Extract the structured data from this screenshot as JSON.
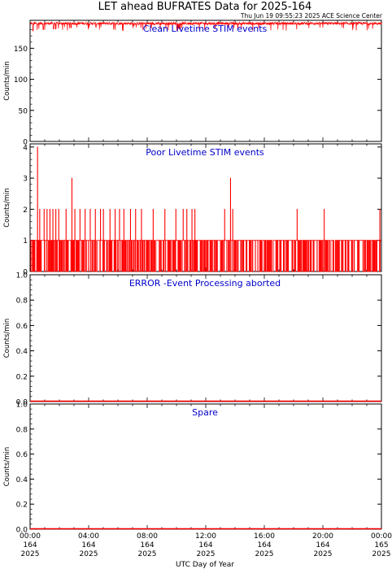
{
  "figure": {
    "title": "LET ahead BUFRATES Data for 2025-164",
    "timestamp": "Thu Jun 19 09:55:23 2025 ACE Science Center",
    "xlabel": "UTC Day of Year",
    "colors": {
      "data": "#ff0000",
      "panel_title": "#0000cc",
      "axes": "#000000"
    }
  },
  "chart_data": [
    {
      "type": "line",
      "title": "Clean Livetime STIM events",
      "ylabel": "Counts/min",
      "ylim": [
        0,
        195
      ],
      "yticks": [
        0,
        50,
        100,
        150
      ],
      "ytick_labels": [
        "0",
        "50",
        "100",
        "150"
      ],
      "xlim_hours": [
        0,
        24
      ],
      "series": [
        {
          "band_low": 178,
          "band_high": 195,
          "typical": 190,
          "note_dips": [
            [
              0.2,
              178
            ],
            [
              0.9,
              180
            ],
            [
              1.6,
              181
            ],
            [
              2.8,
              183
            ],
            [
              4.5,
              184
            ],
            [
              7.1,
              186
            ]
          ]
        }
      ]
    },
    {
      "type": "line",
      "title": "Poor Livetime STIM events",
      "ylabel": "Counts/min",
      "ylim": [
        0,
        4.1
      ],
      "yticks": [
        0,
        1,
        2,
        3,
        4
      ],
      "ytick_labels": [
        "0",
        "1",
        "2",
        "3",
        "4"
      ],
      "xlim_hours": [
        0,
        24
      ],
      "series": [
        {
          "base_one_coverage": 0.7,
          "spikes": [
            [
              0.5,
              4
            ],
            [
              0.65,
              2
            ],
            [
              0.95,
              2
            ],
            [
              1.15,
              2
            ],
            [
              1.35,
              2
            ],
            [
              1.55,
              2
            ],
            [
              1.75,
              2
            ],
            [
              1.95,
              2
            ],
            [
              2.45,
              2
            ],
            [
              2.85,
              3
            ],
            [
              3.05,
              2
            ],
            [
              3.4,
              2
            ],
            [
              3.75,
              2
            ],
            [
              4.1,
              2
            ],
            [
              4.45,
              2
            ],
            [
              4.8,
              2
            ],
            [
              5.0,
              2
            ],
            [
              5.45,
              2
            ],
            [
              5.8,
              2
            ],
            [
              6.1,
              2
            ],
            [
              6.4,
              2
            ],
            [
              6.85,
              2
            ],
            [
              7.2,
              2
            ],
            [
              7.6,
              2
            ],
            [
              8.4,
              2
            ],
            [
              9.2,
              2
            ],
            [
              9.95,
              2
            ],
            [
              10.45,
              2
            ],
            [
              10.7,
              2
            ],
            [
              11.05,
              2
            ],
            [
              11.25,
              2
            ],
            [
              13.3,
              2
            ],
            [
              13.7,
              3
            ],
            [
              13.85,
              2
            ],
            [
              18.25,
              2
            ],
            [
              20.1,
              2
            ],
            [
              23.9,
              2
            ]
          ]
        }
      ]
    },
    {
      "type": "line",
      "title": "ERROR -Event Processing aborted",
      "ylabel": "Counts/min",
      "ylim": [
        0,
        1
      ],
      "yticks": [
        0,
        0.2,
        0.4,
        0.6,
        0.8,
        1.0
      ],
      "ytick_labels": [
        "0.0",
        "0.2",
        "0.4",
        "0.6",
        "0.8",
        "1.0"
      ],
      "xlim_hours": [
        0,
        24
      ],
      "series": [
        {
          "constant": 0
        }
      ]
    },
    {
      "type": "line",
      "title": "Spare",
      "ylabel": "Counts/min",
      "ylim": [
        0,
        1
      ],
      "yticks": [
        0,
        0.2,
        0.4,
        0.6,
        0.8,
        1.0
      ],
      "ytick_labels": [
        "0.0",
        "0.2",
        "0.4",
        "0.6",
        "0.8",
        "1.0"
      ],
      "xlim_hours": [
        0,
        24
      ],
      "series": [
        {
          "constant": 0
        }
      ]
    }
  ],
  "x_axis": {
    "ticks_hours": [
      0,
      4,
      8,
      12,
      16,
      20,
      24
    ],
    "tick_labels": [
      [
        "00:00",
        "164",
        "2025"
      ],
      [
        "04:00",
        "164",
        "2025"
      ],
      [
        "08:00",
        "164",
        "2025"
      ],
      [
        "12:00",
        "164",
        "2025"
      ],
      [
        "16:00",
        "164",
        "2025"
      ],
      [
        "20:00",
        "164",
        "2025"
      ],
      [
        "00:00",
        "165",
        "2025"
      ]
    ]
  }
}
